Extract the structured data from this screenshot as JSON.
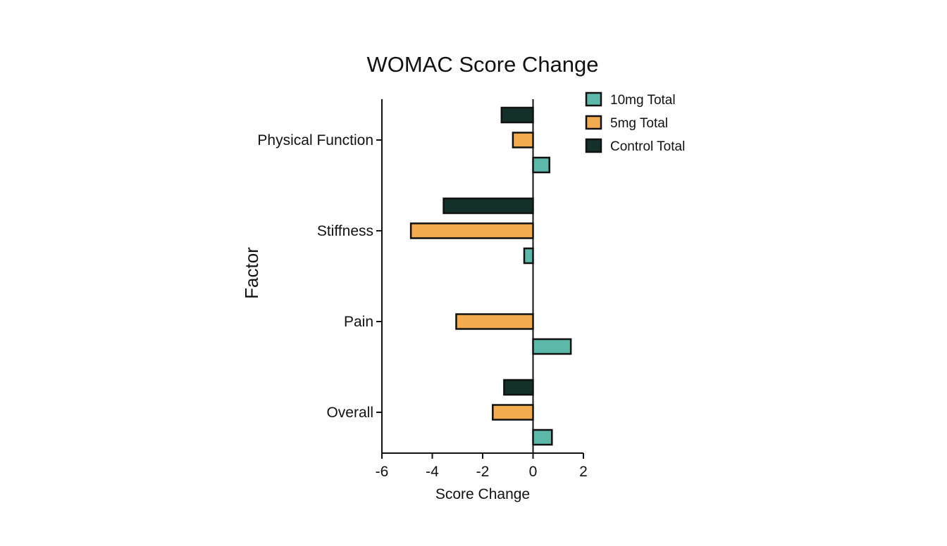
{
  "chart_data": {
    "type": "bar",
    "orientation": "horizontal",
    "title": "WOMAC Score Change",
    "xlabel": "Score Change",
    "ylabel": "Factor",
    "xlim": [
      -6,
      2
    ],
    "xticks": [
      "-6",
      "-4",
      "-2",
      "0",
      "2"
    ],
    "categories": [
      "Physical Function",
      "Stiffness",
      "Pain",
      "Overall"
    ],
    "series": [
      {
        "name": "10mg Total",
        "color": "#5cb8a8",
        "values": [
          0.65,
          -0.35,
          1.5,
          0.75
        ]
      },
      {
        "name": "5mg Total",
        "color": "#f2ab4e",
        "values": [
          -0.8,
          -4.85,
          -3.05,
          -1.6
        ]
      },
      {
        "name": "Control Total",
        "color": "#14302b",
        "values": [
          -1.25,
          -3.55,
          0,
          -1.15
        ]
      }
    ],
    "legend_position": "top-right",
    "grid": false
  }
}
